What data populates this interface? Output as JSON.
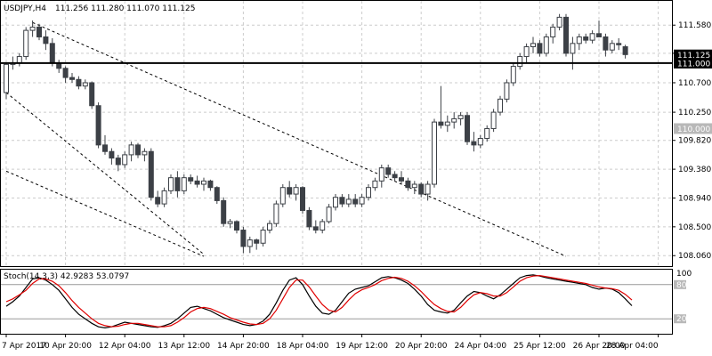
{
  "header": {
    "symbol": "USDJPY,H4",
    "ohlc": "111.256 111.280 111.070 111.125"
  },
  "colors": {
    "background": "#ffffff",
    "grid": "#cccccc",
    "candle": "#3c4046",
    "level_line": "#000000",
    "label_box": "#000000",
    "label_box_grey": "#b8b8b8",
    "stoch_main": "#000000",
    "stoch_signal": "#e00000"
  },
  "chart_data": [
    {
      "type": "candlestick",
      "ylim": [
        107.9,
        111.95
      ],
      "yticks": [
        "111.580",
        "111.150",
        "110.700",
        "110.250",
        "109.820",
        "109.380",
        "108.940",
        "108.500",
        "108.060"
      ],
      "ytick_values": [
        111.58,
        111.15,
        110.7,
        110.25,
        109.82,
        109.38,
        108.94,
        108.5,
        108.06
      ],
      "xticks": [
        "7 Apr 2017",
        "10 Apr 20:00",
        "12 Apr 04:00",
        "13 Apr 12:00",
        "14 Apr 20:00",
        "18 Apr 04:00",
        "19 Apr 12:00",
        "20 Apr 20:00",
        "24 Apr 04:00",
        "25 Apr 12:00",
        "26 Apr 20:00",
        "28 Apr 04:00"
      ],
      "xtick_index": [
        0,
        9,
        18,
        27,
        36,
        45,
        54,
        63,
        72,
        81,
        90,
        99
      ],
      "horizontal_levels": [
        {
          "value": 111.0,
          "label": "111.000",
          "style": "solid-thick"
        }
      ],
      "price_labels": [
        {
          "value": 111.125,
          "label": "111.125",
          "box": "black"
        },
        {
          "value": 111.0,
          "label": "111.000",
          "box": "black"
        },
        {
          "value": 110.0,
          "label": "110.000",
          "box": "grey"
        }
      ],
      "channel_lines": [
        {
          "start": [
            4,
            111.62
          ],
          "end": [
            85,
            108.05
          ]
        },
        {
          "start": [
            0,
            110.55
          ],
          "end": [
            30,
            108.08
          ]
        },
        {
          "start": [
            0,
            109.35
          ],
          "end": [
            30,
            108.05
          ]
        }
      ],
      "candles": [
        [
          110.55,
          111.0,
          110.45,
          110.98
        ],
        [
          110.98,
          111.1,
          110.9,
          111.0
        ],
        [
          111.0,
          111.15,
          110.95,
          111.1
        ],
        [
          111.1,
          111.55,
          111.05,
          111.5
        ],
        [
          111.5,
          111.65,
          111.4,
          111.55
        ],
        [
          111.55,
          111.6,
          111.35,
          111.4
        ],
        [
          111.4,
          111.5,
          111.2,
          111.3
        ],
        [
          111.3,
          111.38,
          110.95,
          111.0
        ],
        [
          111.0,
          111.05,
          110.85,
          110.92
        ],
        [
          110.92,
          110.95,
          110.7,
          110.78
        ],
        [
          110.78,
          110.85,
          110.7,
          110.75
        ],
        [
          110.75,
          110.8,
          110.6,
          110.65
        ],
        [
          110.65,
          110.75,
          110.6,
          110.7
        ],
        [
          110.7,
          110.72,
          110.3,
          110.35
        ],
        [
          110.35,
          110.4,
          109.7,
          109.75
        ],
        [
          109.75,
          109.9,
          109.6,
          109.65
        ],
        [
          109.65,
          109.7,
          109.45,
          109.55
        ],
        [
          109.55,
          109.6,
          109.35,
          109.45
        ],
        [
          109.45,
          109.65,
          109.4,
          109.6
        ],
        [
          109.6,
          109.8,
          109.5,
          109.75
        ],
        [
          109.75,
          109.78,
          109.55,
          109.6
        ],
        [
          109.6,
          109.7,
          109.5,
          109.65
        ],
        [
          109.65,
          109.7,
          108.9,
          108.95
        ],
        [
          108.95,
          109.05,
          108.8,
          108.85
        ],
        [
          108.85,
          109.1,
          108.8,
          109.05
        ],
        [
          109.05,
          109.3,
          109.0,
          109.25
        ],
        [
          109.25,
          109.35,
          108.95,
          109.05
        ],
        [
          109.05,
          109.3,
          109.0,
          109.25
        ],
        [
          109.25,
          109.3,
          109.15,
          109.2
        ],
        [
          109.2,
          109.28,
          109.1,
          109.15
        ],
        [
          109.15,
          109.25,
          109.05,
          109.2
        ],
        [
          109.2,
          109.22,
          109.05,
          109.1
        ],
        [
          109.1,
          109.12,
          108.85,
          108.9
        ],
        [
          108.9,
          108.95,
          108.5,
          108.55
        ],
        [
          108.55,
          108.62,
          108.48,
          108.58
        ],
        [
          108.58,
          108.6,
          108.4,
          108.45
        ],
        [
          108.45,
          108.5,
          108.1,
          108.2
        ],
        [
          108.2,
          108.35,
          108.1,
          108.3
        ],
        [
          108.3,
          108.32,
          108.15,
          108.25
        ],
        [
          108.25,
          108.5,
          108.2,
          108.45
        ],
        [
          108.45,
          108.6,
          108.4,
          108.55
        ],
        [
          108.55,
          108.9,
          108.5,
          108.85
        ],
        [
          108.85,
          109.15,
          108.8,
          109.1
        ],
        [
          109.1,
          109.2,
          108.95,
          109.0
        ],
        [
          109.0,
          109.15,
          108.9,
          109.1
        ],
        [
          109.1,
          109.12,
          108.7,
          108.75
        ],
        [
          108.75,
          108.8,
          108.45,
          108.5
        ],
        [
          108.5,
          108.6,
          108.4,
          108.45
        ],
        [
          108.45,
          108.62,
          108.4,
          108.58
        ],
        [
          108.58,
          108.85,
          108.55,
          108.8
        ],
        [
          108.8,
          109.0,
          108.75,
          108.95
        ],
        [
          108.95,
          109.0,
          108.8,
          108.85
        ],
        [
          108.85,
          109.0,
          108.8,
          108.92
        ],
        [
          108.92,
          109.0,
          108.8,
          108.85
        ],
        [
          108.85,
          109.0,
          108.8,
          108.95
        ],
        [
          108.95,
          109.15,
          108.9,
          109.1
        ],
        [
          109.1,
          109.25,
          109.05,
          109.2
        ],
        [
          109.2,
          109.45,
          109.1,
          109.4
        ],
        [
          109.4,
          109.45,
          109.25,
          109.3
        ],
        [
          109.3,
          109.35,
          109.2,
          109.25
        ],
        [
          109.25,
          109.35,
          109.15,
          109.2
        ],
        [
          109.2,
          109.25,
          109.05,
          109.1
        ],
        [
          109.1,
          109.2,
          109.0,
          109.15
        ],
        [
          109.15,
          109.18,
          108.95,
          109.0
        ],
        [
          109.0,
          109.2,
          108.9,
          109.15
        ],
        [
          109.15,
          110.15,
          109.1,
          110.1
        ],
        [
          110.1,
          110.65,
          110.0,
          110.05
        ],
        [
          110.05,
          110.2,
          109.95,
          110.1
        ],
        [
          110.1,
          110.25,
          110.0,
          110.15
        ],
        [
          110.15,
          110.25,
          110.05,
          110.2
        ],
        [
          110.2,
          110.25,
          109.75,
          109.8
        ],
        [
          109.8,
          109.95,
          109.65,
          109.75
        ],
        [
          109.75,
          109.9,
          109.7,
          109.85
        ],
        [
          109.85,
          110.05,
          109.8,
          110.0
        ],
        [
          110.0,
          110.3,
          109.95,
          110.25
        ],
        [
          110.25,
          110.5,
          110.2,
          110.45
        ],
        [
          110.45,
          110.75,
          110.4,
          110.7
        ],
        [
          110.7,
          111.0,
          110.65,
          110.95
        ],
        [
          110.95,
          111.15,
          110.9,
          111.1
        ],
        [
          111.1,
          111.3,
          111.0,
          111.25
        ],
        [
          111.25,
          111.4,
          111.15,
          111.3
        ],
        [
          111.3,
          111.35,
          111.1,
          111.15
        ],
        [
          111.15,
          111.45,
          111.1,
          111.4
        ],
        [
          111.4,
          111.6,
          111.3,
          111.55
        ],
        [
          111.55,
          111.75,
          111.5,
          111.7
        ],
        [
          111.7,
          111.75,
          111.1,
          111.15
        ],
        [
          111.15,
          111.4,
          110.9,
          111.3
        ],
        [
          111.3,
          111.45,
          111.2,
          111.4
        ],
        [
          111.4,
          111.45,
          111.3,
          111.35
        ],
        [
          111.35,
          111.5,
          111.3,
          111.45
        ],
        [
          111.45,
          111.65,
          111.4,
          111.4
        ],
        [
          111.4,
          111.45,
          111.1,
          111.2
        ],
        [
          111.2,
          111.35,
          111.15,
          111.3
        ],
        [
          111.3,
          111.38,
          111.2,
          111.28
        ],
        [
          111.25,
          111.28,
          111.07,
          111.13
        ]
      ]
    },
    {
      "type": "line",
      "title": "Stoch(14,3,3) 42.9283 53.0797",
      "ylim": [
        0,
        100
      ],
      "levels": [
        80,
        20
      ],
      "ytick_labels": [
        "100",
        "80",
        "20"
      ],
      "series": [
        {
          "name": "main",
          "color": "#000000",
          "values": [
            42,
            50,
            60,
            75,
            90,
            92,
            88,
            80,
            70,
            55,
            40,
            28,
            20,
            12,
            6,
            4,
            6,
            10,
            14,
            12,
            10,
            8,
            6,
            5,
            8,
            12,
            20,
            30,
            40,
            42,
            38,
            34,
            28,
            22,
            18,
            14,
            10,
            8,
            10,
            16,
            28,
            48,
            70,
            88,
            92,
            80,
            60,
            42,
            30,
            28,
            35,
            50,
            65,
            72,
            75,
            78,
            85,
            92,
            94,
            92,
            88,
            82,
            72,
            60,
            45,
            35,
            32,
            30,
            35,
            48,
            60,
            68,
            66,
            60,
            55,
            62,
            72,
            82,
            92,
            96,
            97,
            95,
            92,
            90,
            88,
            86,
            84,
            82,
            80,
            75,
            72,
            74,
            72,
            66,
            55,
            43
          ]
        },
        {
          "name": "signal",
          "color": "#e00000",
          "values": [
            50,
            55,
            62,
            70,
            82,
            90,
            90,
            86,
            78,
            66,
            52,
            40,
            30,
            20,
            12,
            8,
            6,
            7,
            10,
            12,
            12,
            10,
            8,
            6,
            6,
            8,
            14,
            22,
            32,
            38,
            40,
            38,
            33,
            28,
            22,
            18,
            14,
            11,
            10,
            12,
            20,
            35,
            55,
            75,
            88,
            88,
            76,
            60,
            45,
            35,
            32,
            40,
            53,
            64,
            71,
            75,
            80,
            87,
            91,
            93,
            91,
            86,
            78,
            68,
            56,
            45,
            38,
            33,
            32,
            40,
            52,
            62,
            66,
            64,
            60,
            60,
            66,
            76,
            86,
            92,
            95,
            96,
            94,
            92,
            90,
            88,
            86,
            84,
            82,
            79,
            76,
            74,
            73,
            70,
            63,
            53
          ]
        }
      ]
    }
  ]
}
